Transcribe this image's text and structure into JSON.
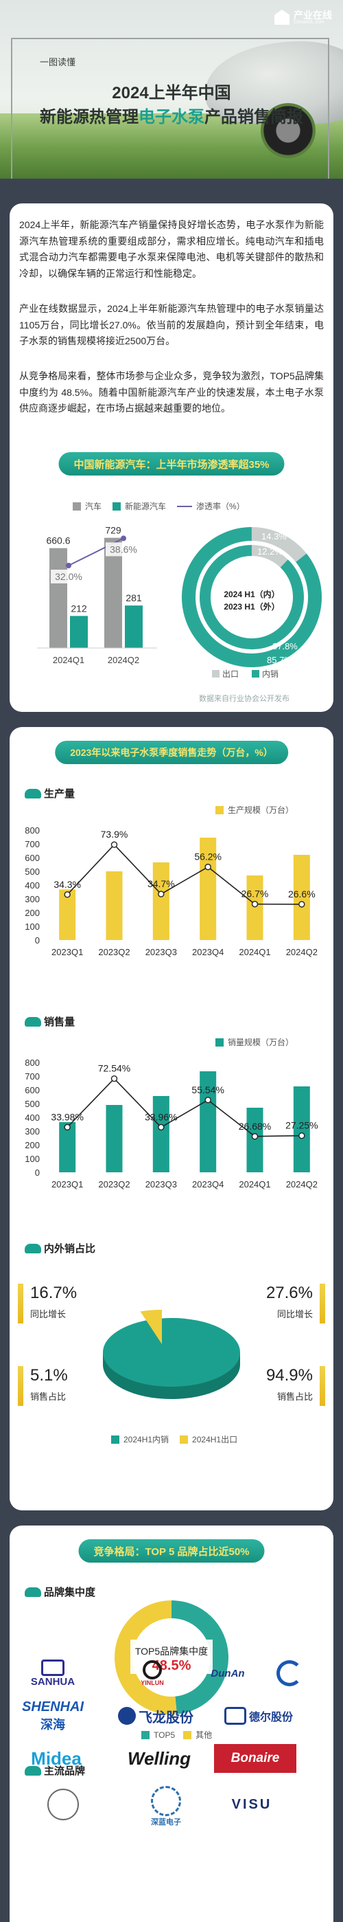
{
  "header": {
    "logo_text": "产业在线",
    "logo_sub": "ChinaIOL.com",
    "tag": "一图读懂",
    "title_line1": "2024上半年中国",
    "title_line2_a": "新能源热管理",
    "title_line2_hl": "电子水泵",
    "title_line2_b": "产品销售简报"
  },
  "intro": {
    "p1": "2024上半年，新能源汽车产销量保持良好增长态势，电子水泵作为新能源汽车热管理系统的重要组成部分，需求相应增长。纯电动汽车和插电式混合动力汽车都需要电子水泵来保障电池、电机等关键部件的散热和冷却，以确保车辆的正常运行和性能稳定。",
    "p2": "产业在线数据显示，2024上半年新能源汽车热管理中的电子水泵销量达1105万台，同比增长27.0%。依当前的发展趋向，预计到全年结束，电子水泵的销售规模将接近2500万台。",
    "p3": "从竞争格局来看，整体市场参与企业众多，竞争较为激烈，TOP5品牌集中度约为 48.5%。随着中国新能源汽车产业的快速发展，本土电子水泵供应商逐步崛起，在市场占据越来越重要的地位。",
    "pill": "中国新能源汽车：上半年市场渗透率超35%",
    "source": "数据来自行业协会公开发布"
  },
  "penetration": {
    "legend": [
      "汽车",
      "新能源汽车",
      "渗透率（%）"
    ],
    "colors": {
      "car": "#9a9d9c",
      "nev": "#1ba08f",
      "rate": "#6a5fa6"
    },
    "chart_data": {
      "type": "bar",
      "categories": [
        "2024Q1",
        "2024Q2"
      ],
      "series": [
        {
          "name": "汽车",
          "values": [
            660.6,
            729
          ]
        },
        {
          "name": "新能源汽车",
          "values": [
            212,
            281
          ]
        },
        {
          "name": "渗透率（%）",
          "values": [
            32.0,
            38.6
          ]
        }
      ],
      "value_labels": {
        "car": [
          "660.6",
          "729"
        ],
        "nev": [
          "212",
          "281"
        ],
        "rate": [
          "32.0%",
          "38.6%"
        ]
      }
    }
  },
  "ring": {
    "center1": "2024 H1（内）",
    "center2": "2023 H1（外）",
    "legend": [
      "出口",
      "内销"
    ],
    "colors": {
      "export": "#c9cfcd",
      "domestic": "#2aa897"
    },
    "chart_data": {
      "type": "pie",
      "rings": [
        {
          "name": "2024 H1（内）",
          "labels": [
            "出口",
            "内销"
          ],
          "values": [
            12.2,
            87.8
          ],
          "value_labels": [
            "12.2%",
            "87.8%"
          ]
        },
        {
          "name": "2023 H1（外）",
          "labels": [
            "出口",
            "内销"
          ],
          "values": [
            14.3,
            85.7
          ],
          "value_labels": [
            "14.3%",
            "85.7%"
          ]
        }
      ]
    }
  },
  "trend": {
    "pill": "2023年以来电子水泵季度销售走势（万台，%）",
    "production": {
      "title": "生产量",
      "legend": "生产规模（万台）",
      "color": "#f0cd3b",
      "chart_data": {
        "type": "bar",
        "categories": [
          "2023Q1",
          "2023Q2",
          "2023Q3",
          "2023Q4",
          "2024Q1",
          "2024Q2"
        ],
        "y_ticks": [
          "0",
          "100",
          "200",
          "300",
          "400",
          "500",
          "600",
          "700",
          "800"
        ],
        "ylim": [
          0,
          800
        ],
        "series": [
          {
            "name": "生产规模（万台）",
            "values": [
              368,
              500,
              565,
              745,
              470,
              620
            ]
          }
        ],
        "growth": [
          34.3,
          73.9,
          34.7,
          56.2,
          26.7,
          26.6
        ],
        "growth_labels": [
          "34.3%",
          "73.9%",
          "34.7%",
          "56.2%",
          "26.7%",
          "26.6%"
        ]
      }
    },
    "sales": {
      "title": "销售量",
      "legend": "销量规模（万台）",
      "color": "#1ba08f",
      "chart_data": {
        "type": "bar",
        "categories": [
          "2023Q1",
          "2023Q2",
          "2023Q3",
          "2023Q4",
          "2024Q1",
          "2024Q2"
        ],
        "y_ticks": [
          "0",
          "100",
          "200",
          "300",
          "400",
          "500",
          "600",
          "700",
          "800"
        ],
        "ylim": [
          0,
          800
        ],
        "series": [
          {
            "name": "销量规模（万台）",
            "values": [
              365,
              490,
              555,
              735,
              470,
              625
            ]
          }
        ],
        "growth": [
          33.98,
          72.54,
          33.96,
          55.54,
          26.68,
          27.25
        ],
        "growth_labels": [
          "33.98%",
          "72.54%",
          "33.96%",
          "55.54%",
          "26.68%",
          "27.25%"
        ]
      }
    },
    "split": {
      "title": "内外销占比",
      "left_top": {
        "value": "16.7%",
        "label": "同比增长"
      },
      "left_bottom": {
        "value": "5.1%",
        "label": "销售占比"
      },
      "right_top": {
        "value": "27.6%",
        "label": "同比增长"
      },
      "right_bottom": {
        "value": "94.9%",
        "label": "销售占比"
      },
      "legend": [
        "2024H1内销",
        "2024H1出口"
      ],
      "colors": {
        "domestic": "#1ba08f",
        "export": "#f0cd3b"
      },
      "chart_data": {
        "type": "pie",
        "labels": [
          "2024H1内销",
          "2024H1出口"
        ],
        "values": [
          94.9,
          5.1
        ]
      }
    }
  },
  "competition": {
    "pill": "竞争格局：TOP 5 品牌占比近50%",
    "concentration_title": "品牌集中度",
    "center_label": "TOP5品牌集中度",
    "center_value": "48.5%",
    "legend": [
      "TOP5",
      "其他"
    ],
    "colors": {
      "top5": "#2aa897",
      "other": "#f0cd3b"
    },
    "chart_data": {
      "type": "pie",
      "labels": [
        "TOP5",
        "其他"
      ],
      "values": [
        48.5,
        51.5
      ]
    },
    "brands_title": "主流品牌",
    "brands": [
      "SANHUA",
      "YINLUN",
      "DunAn",
      "SHENHAI",
      "深海",
      "飞龙股份",
      "德尔股份",
      "Midea",
      "Welling",
      "Bonaire",
      "深蓝电子",
      "VISU"
    ]
  },
  "watermark": "产业在线"
}
